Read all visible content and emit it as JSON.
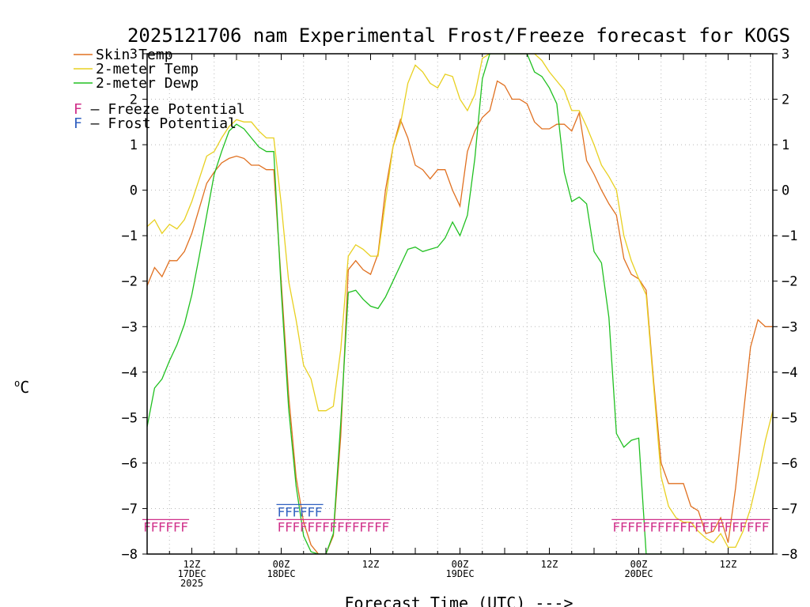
{
  "chart_data": {
    "type": "line",
    "title": "2025121706 nam Experimental Frost/Freeze forecast for KOGS",
    "xlabel": "Forecast Time (UTC) --->",
    "ylabel": "°C",
    "ylabel_parts": {
      "degree": "o",
      "unit": "C"
    },
    "ylim": [
      -8,
      3
    ],
    "y_ticks": [
      -8,
      -7,
      -6,
      -5,
      -4,
      -3,
      -2,
      -1,
      0,
      1,
      2,
      3
    ],
    "y_tick_labels": [
      "−8",
      "−7",
      "−6",
      "−5",
      "−4",
      "−3",
      "−2",
      "−1",
      "0",
      "1",
      "2",
      "3"
    ],
    "x_range_hours": [
      0,
      84
    ],
    "x_ticks": [
      {
        "hour": 6,
        "lines": [
          "12Z",
          "17DEC",
          "2025"
        ]
      },
      {
        "hour": 18,
        "lines": [
          "00Z",
          "18DEC"
        ]
      },
      {
        "hour": 30,
        "lines": [
          "12Z"
        ]
      },
      {
        "hour": 42,
        "lines": [
          "00Z",
          "19DEC"
        ]
      },
      {
        "hour": 54,
        "lines": [
          "12Z"
        ]
      },
      {
        "hour": 66,
        "lines": [
          "00Z",
          "20DEC"
        ]
      },
      {
        "hour": 78,
        "lines": [
          "12Z"
        ]
      }
    ],
    "series": [
      {
        "name": "Skin Temp",
        "color": "#e07020",
        "x": [
          0,
          1,
          2,
          3,
          4,
          5,
          6,
          7,
          8,
          9,
          10,
          11,
          12,
          13,
          14,
          15,
          16,
          17,
          18,
          19,
          20,
          21,
          22,
          23,
          24,
          25,
          26,
          27,
          28,
          29,
          30,
          31,
          32,
          33,
          34,
          35,
          36,
          37,
          38,
          39,
          40,
          41,
          42,
          43,
          44,
          45,
          46,
          47,
          48,
          49,
          50,
          51,
          52,
          53,
          54,
          55,
          56,
          57,
          58,
          59,
          60,
          61,
          62,
          63,
          64,
          65,
          66,
          67,
          68,
          69,
          70,
          71,
          72,
          73,
          74,
          75,
          76,
          77,
          78,
          79,
          80,
          81,
          82,
          83,
          84
        ],
        "values": [
          -2.1,
          -1.7,
          -1.9,
          -1.55,
          -1.55,
          -1.35,
          -0.95,
          -0.4,
          0.15,
          0.4,
          0.6,
          0.7,
          0.75,
          0.7,
          0.55,
          0.55,
          0.45,
          0.45,
          -2.0,
          -4.5,
          -6.3,
          -7.3,
          -7.8,
          -8.0,
          -8.0,
          -7.6,
          -5.4,
          -1.75,
          -1.55,
          -1.75,
          -1.85,
          -1.4,
          0.0,
          0.95,
          1.55,
          1.15,
          0.55,
          0.45,
          0.25,
          0.45,
          0.45,
          0.0,
          -0.35,
          0.85,
          1.3,
          1.6,
          1.75,
          2.4,
          2.3,
          2.0,
          2.0,
          1.9,
          1.5,
          1.35,
          1.35,
          1.45,
          1.45,
          1.3,
          1.7,
          0.65,
          0.35,
          0.0,
          -0.3,
          -0.55,
          -1.5,
          -1.85,
          -1.95,
          -2.2,
          -4.2,
          -6.0,
          -6.45,
          -6.45,
          -6.45,
          -6.95,
          -7.05,
          -7.55,
          -7.5,
          -7.2,
          -7.75,
          -6.55,
          -5.0,
          -3.45,
          -2.85,
          -3.0,
          -3.0
        ]
      },
      {
        "name": "2-meter Temp",
        "color": "#e8d020",
        "x": [
          0,
          1,
          2,
          3,
          4,
          5,
          6,
          7,
          8,
          9,
          10,
          11,
          12,
          13,
          14,
          15,
          16,
          17,
          18,
          19,
          20,
          21,
          22,
          23,
          24,
          25,
          26,
          27,
          28,
          29,
          30,
          31,
          32,
          33,
          34,
          35,
          36,
          37,
          38,
          39,
          40,
          41,
          42,
          43,
          44,
          45,
          46,
          47,
          48,
          49,
          50,
          51,
          52,
          53,
          54,
          55,
          56,
          57,
          58,
          59,
          60,
          61,
          62,
          63,
          64,
          65,
          66,
          67,
          68,
          69,
          70,
          71,
          72,
          73,
          74,
          75,
          76,
          77,
          78,
          79,
          80,
          81,
          82,
          83,
          84
        ],
        "values": [
          -0.8,
          -0.65,
          -0.95,
          -0.75,
          -0.85,
          -0.65,
          -0.25,
          0.25,
          0.75,
          0.85,
          1.15,
          1.4,
          1.55,
          1.5,
          1.5,
          1.3,
          1.15,
          1.15,
          -0.3,
          -2.0,
          -2.85,
          -3.85,
          -4.15,
          -4.85,
          -4.85,
          -4.75,
          -3.5,
          -1.45,
          -1.2,
          -1.3,
          -1.45,
          -1.45,
          -0.25,
          0.95,
          1.45,
          2.35,
          2.75,
          2.6,
          2.35,
          2.25,
          2.55,
          2.5,
          2.0,
          1.75,
          2.1,
          2.9,
          3.0,
          3.0,
          3.0,
          3.0,
          3.0,
          3.0,
          3.0,
          2.85,
          2.6,
          2.4,
          2.2,
          1.75,
          1.75,
          1.4,
          1.0,
          0.55,
          0.3,
          0.0,
          -1.0,
          -1.55,
          -1.95,
          -2.3,
          -4.3,
          -6.3,
          -6.95,
          -7.2,
          -7.3,
          -7.3,
          -7.5,
          -7.65,
          -7.75,
          -7.55,
          -7.85,
          -7.85,
          -7.5,
          -7.0,
          -6.3,
          -5.5,
          -4.85
        ]
      },
      {
        "name": "2-meter Dewp",
        "color": "#20c020",
        "x": [
          0,
          1,
          2,
          3,
          4,
          5,
          6,
          7,
          8,
          9,
          10,
          11,
          12,
          13,
          14,
          15,
          16,
          17,
          18,
          19,
          20,
          21,
          22,
          23,
          24,
          25,
          26,
          27,
          28,
          29,
          30,
          31,
          32,
          33,
          34,
          35,
          36,
          37,
          38,
          39,
          40,
          41,
          42,
          43,
          44,
          45,
          46,
          47,
          48,
          49,
          50,
          51,
          52,
          53,
          54,
          55,
          56,
          57,
          58,
          59,
          60,
          61,
          62,
          63,
          64,
          65,
          66,
          67,
          68,
          69,
          70,
          71,
          72
        ],
        "values": [
          -5.2,
          -4.35,
          -4.15,
          -3.75,
          -3.4,
          -2.95,
          -2.3,
          -1.45,
          -0.55,
          0.35,
          0.85,
          1.3,
          1.45,
          1.35,
          1.15,
          0.95,
          0.85,
          0.85,
          -2.2,
          -4.8,
          -6.5,
          -7.6,
          -7.95,
          -8.0,
          -8.0,
          -7.55,
          -5.1,
          -2.25,
          -2.2,
          -2.4,
          -2.55,
          -2.6,
          -2.35,
          -2.0,
          -1.65,
          -1.3,
          -1.25,
          -1.35,
          -1.3,
          -1.25,
          -1.05,
          -0.7,
          -1.0,
          -0.55,
          0.7,
          2.45,
          3.0,
          3.0,
          3.0,
          3.0,
          3.0,
          3.0,
          2.6,
          2.5,
          2.25,
          1.9,
          0.4,
          -0.25,
          -0.15,
          -0.3,
          -1.35,
          -1.6,
          -2.8,
          -5.35,
          -5.65,
          -5.5,
          -5.45,
          -8.0,
          -8.0,
          -8.0,
          -8.0,
          -8.0,
          -8.0
        ]
      }
    ],
    "legend": {
      "entries": [
        {
          "label": "Skin Temp",
          "color": "#e07020"
        },
        {
          "label": "2-meter Temp",
          "color": "#e8d020"
        },
        {
          "label": "2-meter Dewp",
          "color": "#20c020"
        }
      ],
      "markers": [
        {
          "symbol": "F",
          "label": " – Freeze Potential",
          "color": "#d0308a"
        },
        {
          "symbol": "F",
          "label": " – Frost Potential",
          "color": "#3060c0"
        }
      ],
      "placement": "top-left"
    },
    "potential_bands": [
      {
        "name": "freeze",
        "color": "#d0308a",
        "level": -7.45,
        "hours": [
          0,
          1,
          2,
          3,
          4,
          5,
          18,
          19,
          20,
          21,
          22,
          23,
          24,
          25,
          26,
          27,
          28,
          29,
          30,
          31,
          32,
          63,
          64,
          65,
          66,
          67,
          68,
          69,
          70,
          71,
          72,
          73,
          74,
          75,
          76,
          77,
          78,
          79,
          80,
          81,
          82,
          83
        ]
      },
      {
        "name": "frost",
        "color": "#3060c0",
        "level": -7.12,
        "hours": [
          18,
          19,
          20,
          21,
          22,
          23
        ]
      }
    ],
    "grid": true,
    "right_axis": true
  }
}
